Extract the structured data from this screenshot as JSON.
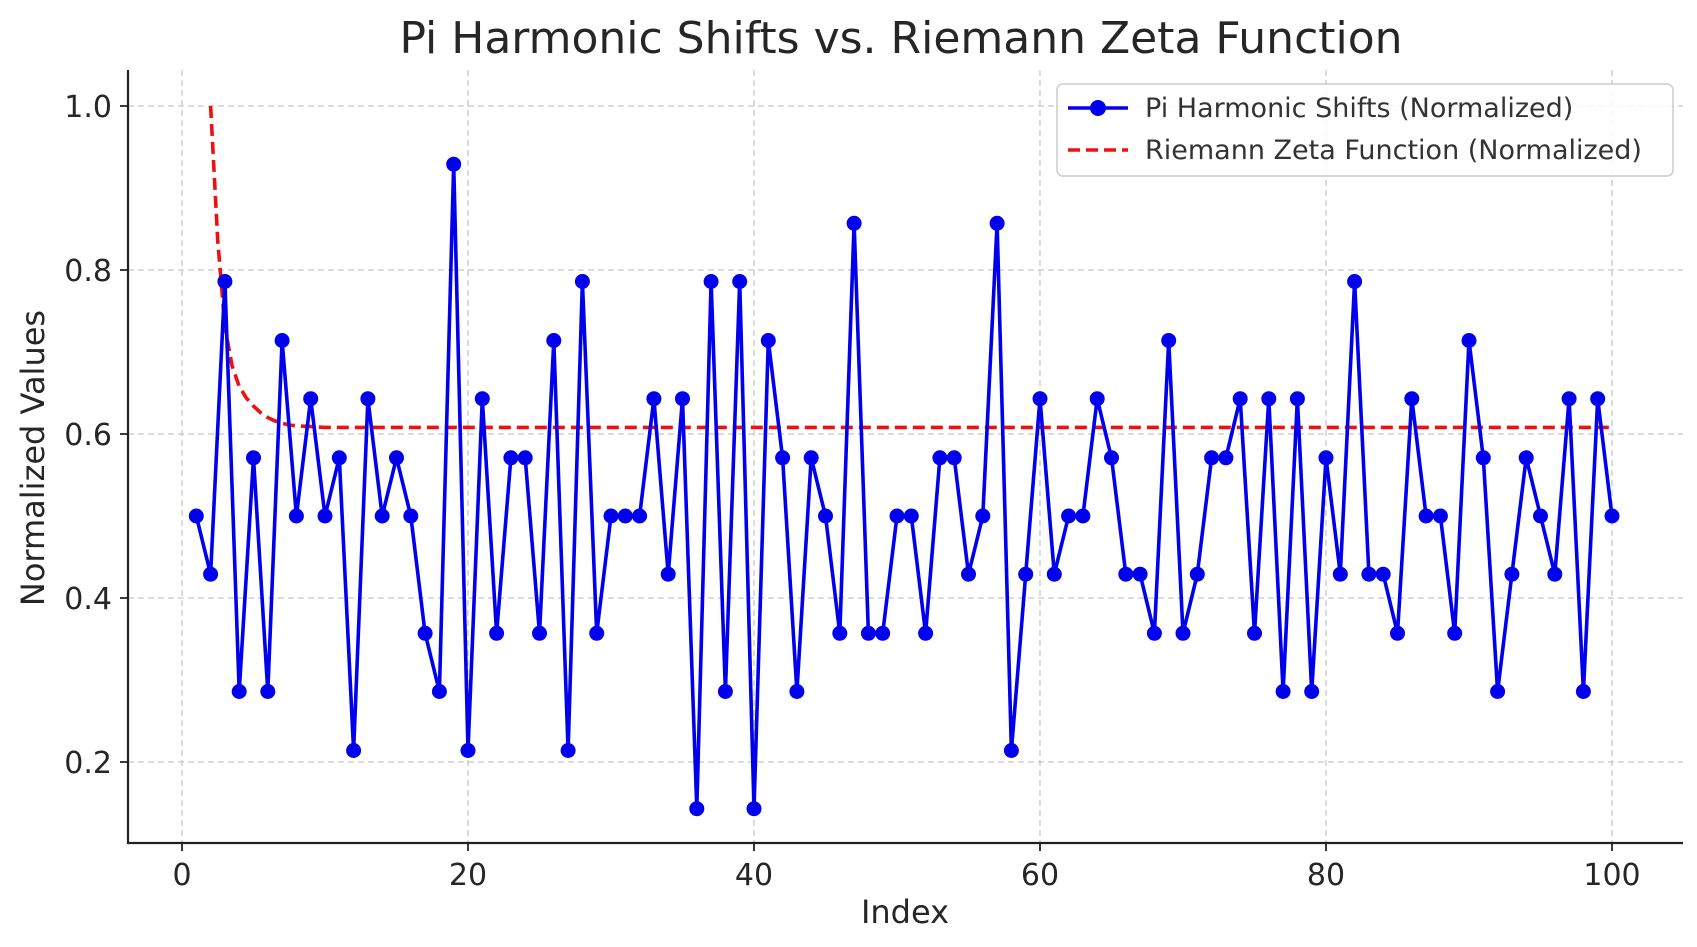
{
  "chart_data": {
    "type": "line",
    "title": "Pi Harmonic Shifts vs. Riemann Zeta Function",
    "xlabel": "Index",
    "ylabel": "Normalized Values",
    "xlim": [
      -4,
      105
    ],
    "ylim": [
      0.1,
      1.04
    ],
    "xticks": [
      0,
      20,
      40,
      60,
      80,
      100
    ],
    "xtick_labels": [
      "0",
      "20",
      "40",
      "60",
      "80",
      "100"
    ],
    "yticks": [
      0.2,
      0.4,
      0.6,
      0.8,
      1.0
    ],
    "ytick_labels": [
      "0.2",
      "0.4",
      "0.6",
      "0.8",
      "1.0"
    ],
    "grid": true,
    "legend_position": "top-right",
    "series": [
      {
        "name": "Pi Harmonic Shifts (Normalized)",
        "color": "#0000ee",
        "style": "solid-markers",
        "x": [
          1,
          2,
          3,
          4,
          5,
          6,
          7,
          8,
          9,
          10,
          11,
          12,
          13,
          14,
          15,
          16,
          17,
          18,
          19,
          20,
          21,
          22,
          23,
          24,
          25,
          26,
          27,
          28,
          29,
          30,
          31,
          32,
          33,
          34,
          35,
          36,
          37,
          38,
          39,
          40,
          41,
          42,
          43,
          44,
          45,
          46,
          47,
          48,
          49,
          50,
          51,
          52,
          53,
          54,
          55,
          56,
          57,
          58,
          59,
          60,
          61,
          62,
          63,
          64,
          65,
          66,
          67,
          68,
          69,
          70,
          71,
          72,
          73,
          74,
          75,
          76,
          77,
          78,
          79,
          80,
          81,
          82,
          83,
          84,
          85,
          86,
          87,
          88,
          89,
          90,
          91,
          92,
          93,
          94,
          95,
          96,
          97,
          98,
          99,
          100
        ],
        "values": [
          0.5,
          0.429,
          0.786,
          0.286,
          0.571,
          0.286,
          0.714,
          0.5,
          0.643,
          0.5,
          0.571,
          0.214,
          0.643,
          0.5,
          0.571,
          0.5,
          0.357,
          0.286,
          0.929,
          0.214,
          0.643,
          0.357,
          0.571,
          0.571,
          0.357,
          0.714,
          0.214,
          0.786,
          0.357,
          0.5,
          0.5,
          0.5,
          0.643,
          0.429,
          0.643,
          0.143,
          0.786,
          0.286,
          0.786,
          0.143,
          0.714,
          0.571,
          0.286,
          0.571,
          0.5,
          0.357,
          0.857,
          0.357,
          0.357,
          0.5,
          0.5,
          0.357,
          0.571,
          0.571,
          0.429,
          0.5,
          0.857,
          0.214,
          0.429,
          0.643,
          0.429,
          0.5,
          0.5,
          0.643,
          0.571,
          0.429,
          0.429,
          0.357,
          0.714,
          0.357,
          0.429,
          0.571,
          0.571,
          0.643,
          0.357,
          0.643,
          0.286,
          0.643,
          0.286,
          0.571,
          0.429,
          0.786,
          0.429,
          0.429,
          0.357,
          0.643,
          0.5,
          0.5,
          0.357,
          0.714,
          0.571,
          0.286,
          0.429,
          0.571,
          0.5,
          0.429,
          0.643,
          0.286,
          0.643,
          0.5
        ]
      },
      {
        "name": "Riemann Zeta Function (Normalized)",
        "color": "#ee1111",
        "style": "dashed",
        "x": [
          2,
          2.5,
          3,
          3.5,
          4,
          4.5,
          5,
          5.5,
          6,
          6.5,
          7,
          7.5,
          8,
          9,
          10,
          12,
          15,
          20,
          30,
          50,
          100
        ],
        "values": [
          1.0,
          0.835,
          0.731,
          0.683,
          0.658,
          0.644,
          0.634,
          0.626,
          0.62,
          0.616,
          0.613,
          0.611,
          0.61,
          0.609,
          0.608,
          0.608,
          0.608,
          0.608,
          0.608,
          0.608,
          0.608
        ]
      }
    ]
  }
}
